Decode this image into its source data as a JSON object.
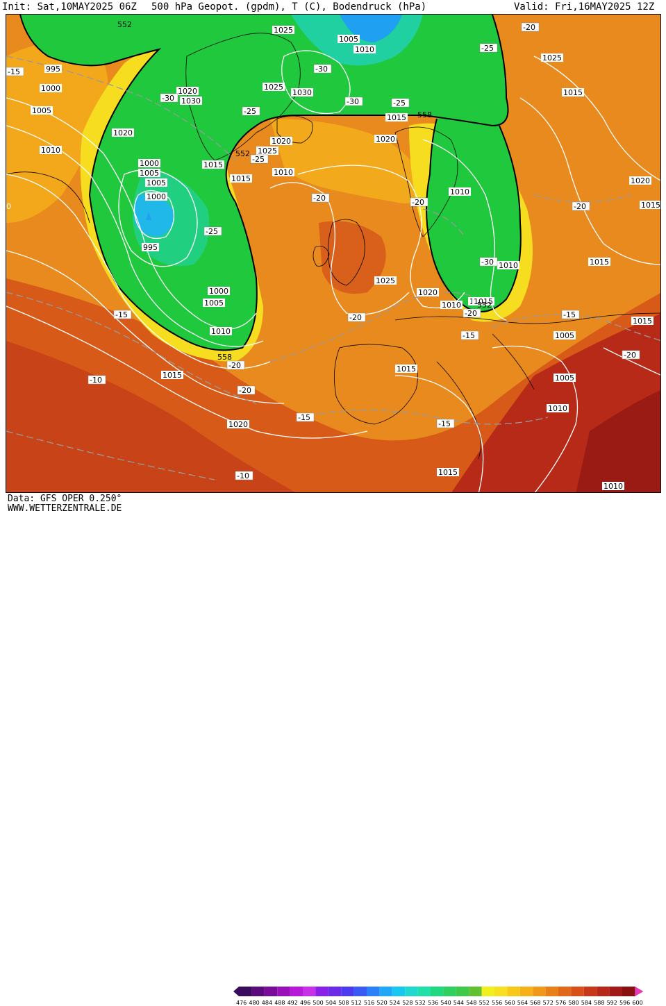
{
  "header": {
    "init": "Init: Sat,10MAY2025 06Z",
    "fields": "500 hPa Geopot. (gpdm), T (C), Bodendruck (hPa)",
    "valid": "Valid: Fri,16MAY2025 12Z"
  },
  "footer": {
    "data_source": "Data: GFS OPER 0.250°",
    "website": "WWW.WETTERZENTRALE.DE"
  },
  "legend": {
    "values": [
      "476",
      "480",
      "484",
      "488",
      "492",
      "496",
      "500",
      "504",
      "508",
      "512",
      "516",
      "520",
      "524",
      "528",
      "532",
      "536",
      "540",
      "544",
      "548",
      "552",
      "556",
      "560",
      "564",
      "568",
      "572",
      "576",
      "580",
      "584",
      "588",
      "592",
      "596",
      "600"
    ],
    "colors": [
      "#3a0a5c",
      "#5a0a7a",
      "#7a0a9a",
      "#9a10b8",
      "#b818d8",
      "#c830e8",
      "#8a20e8",
      "#6a2ae8",
      "#4a3af0",
      "#3a5af5",
      "#2a80f8",
      "#20a8f8",
      "#18c8f0",
      "#20d8d0",
      "#20e0a8",
      "#20d880",
      "#30d060",
      "#40c848",
      "#60c030",
      "#f0f020",
      "#f8e020",
      "#f8c818",
      "#f8b018",
      "#f09818",
      "#e88018",
      "#e06818",
      "#d85018",
      "#c83818",
      "#b82818",
      "#a01818",
      "#881010",
      "#e838b8"
    ]
  },
  "pressure_labels": [
    "1025",
    "1005",
    "1010",
    "995",
    "1000",
    "1005",
    "1020",
    "1030",
    "1025",
    "1030",
    "1015",
    "1020",
    "1010",
    "1000",
    "1005",
    "1015",
    "1020",
    "1025",
    "1015",
    "1010",
    "1005",
    "1000",
    "995",
    "1000",
    "1005",
    "1010",
    "1015",
    "1020",
    "1015",
    "1025",
    "1020",
    "1010",
    "1015",
    "1020",
    "1010",
    "1015",
    "1005",
    "1010",
    "1005",
    "1015",
    "1010",
    "1025",
    "1020",
    "1015",
    "1015",
    "1015",
    "1010",
    "1005",
    "1020",
    "1010",
    "1015"
  ],
  "temperature_labels": [
    "-20",
    "-25",
    "-15",
    "-30",
    "-30",
    "-25",
    "-30",
    "-25",
    "-25",
    "-20",
    "-20",
    "-25",
    "-20",
    "-30",
    "-20",
    "-15",
    "-15",
    "-20",
    "-15",
    "-10",
    "-20",
    "-20",
    "-15",
    "-15",
    "-10",
    "-10",
    "-20",
    "-15"
  ],
  "geopotential_labels": [
    "552",
    "558",
    "552",
    "558",
    "552",
    "558"
  ],
  "colors": {
    "contour_pressure": "#ffffff",
    "isotherm": "#9a9a9a",
    "label_box_pressure": "#ffffff",
    "label_box_temp": "#ffffff",
    "zero_label": "0"
  }
}
